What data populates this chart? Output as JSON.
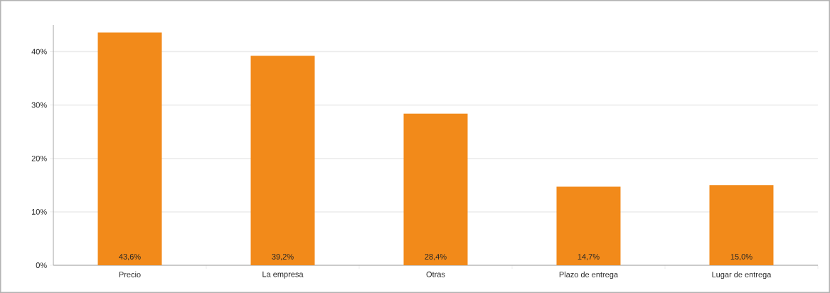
{
  "chart_data": {
    "type": "bar",
    "categories": [
      "Precio",
      "La empresa",
      "Otras",
      "Plazo de entrega",
      "Lugar de entrega"
    ],
    "values": [
      43.6,
      39.2,
      28.4,
      14.7,
      15.0
    ],
    "value_labels": [
      "43,6%",
      "39,2%",
      "28,4%",
      "14,7%",
      "15,0%"
    ],
    "color": "#f28a1a",
    "ylim": [
      0,
      45
    ],
    "yticks": [
      {
        "value": 0,
        "label": "0%"
      },
      {
        "value": 10,
        "label": "10%"
      },
      {
        "value": 20,
        "label": "20%"
      },
      {
        "value": 30,
        "label": "30%"
      },
      {
        "value": 40,
        "label": "40%"
      }
    ],
    "grid": "y"
  }
}
